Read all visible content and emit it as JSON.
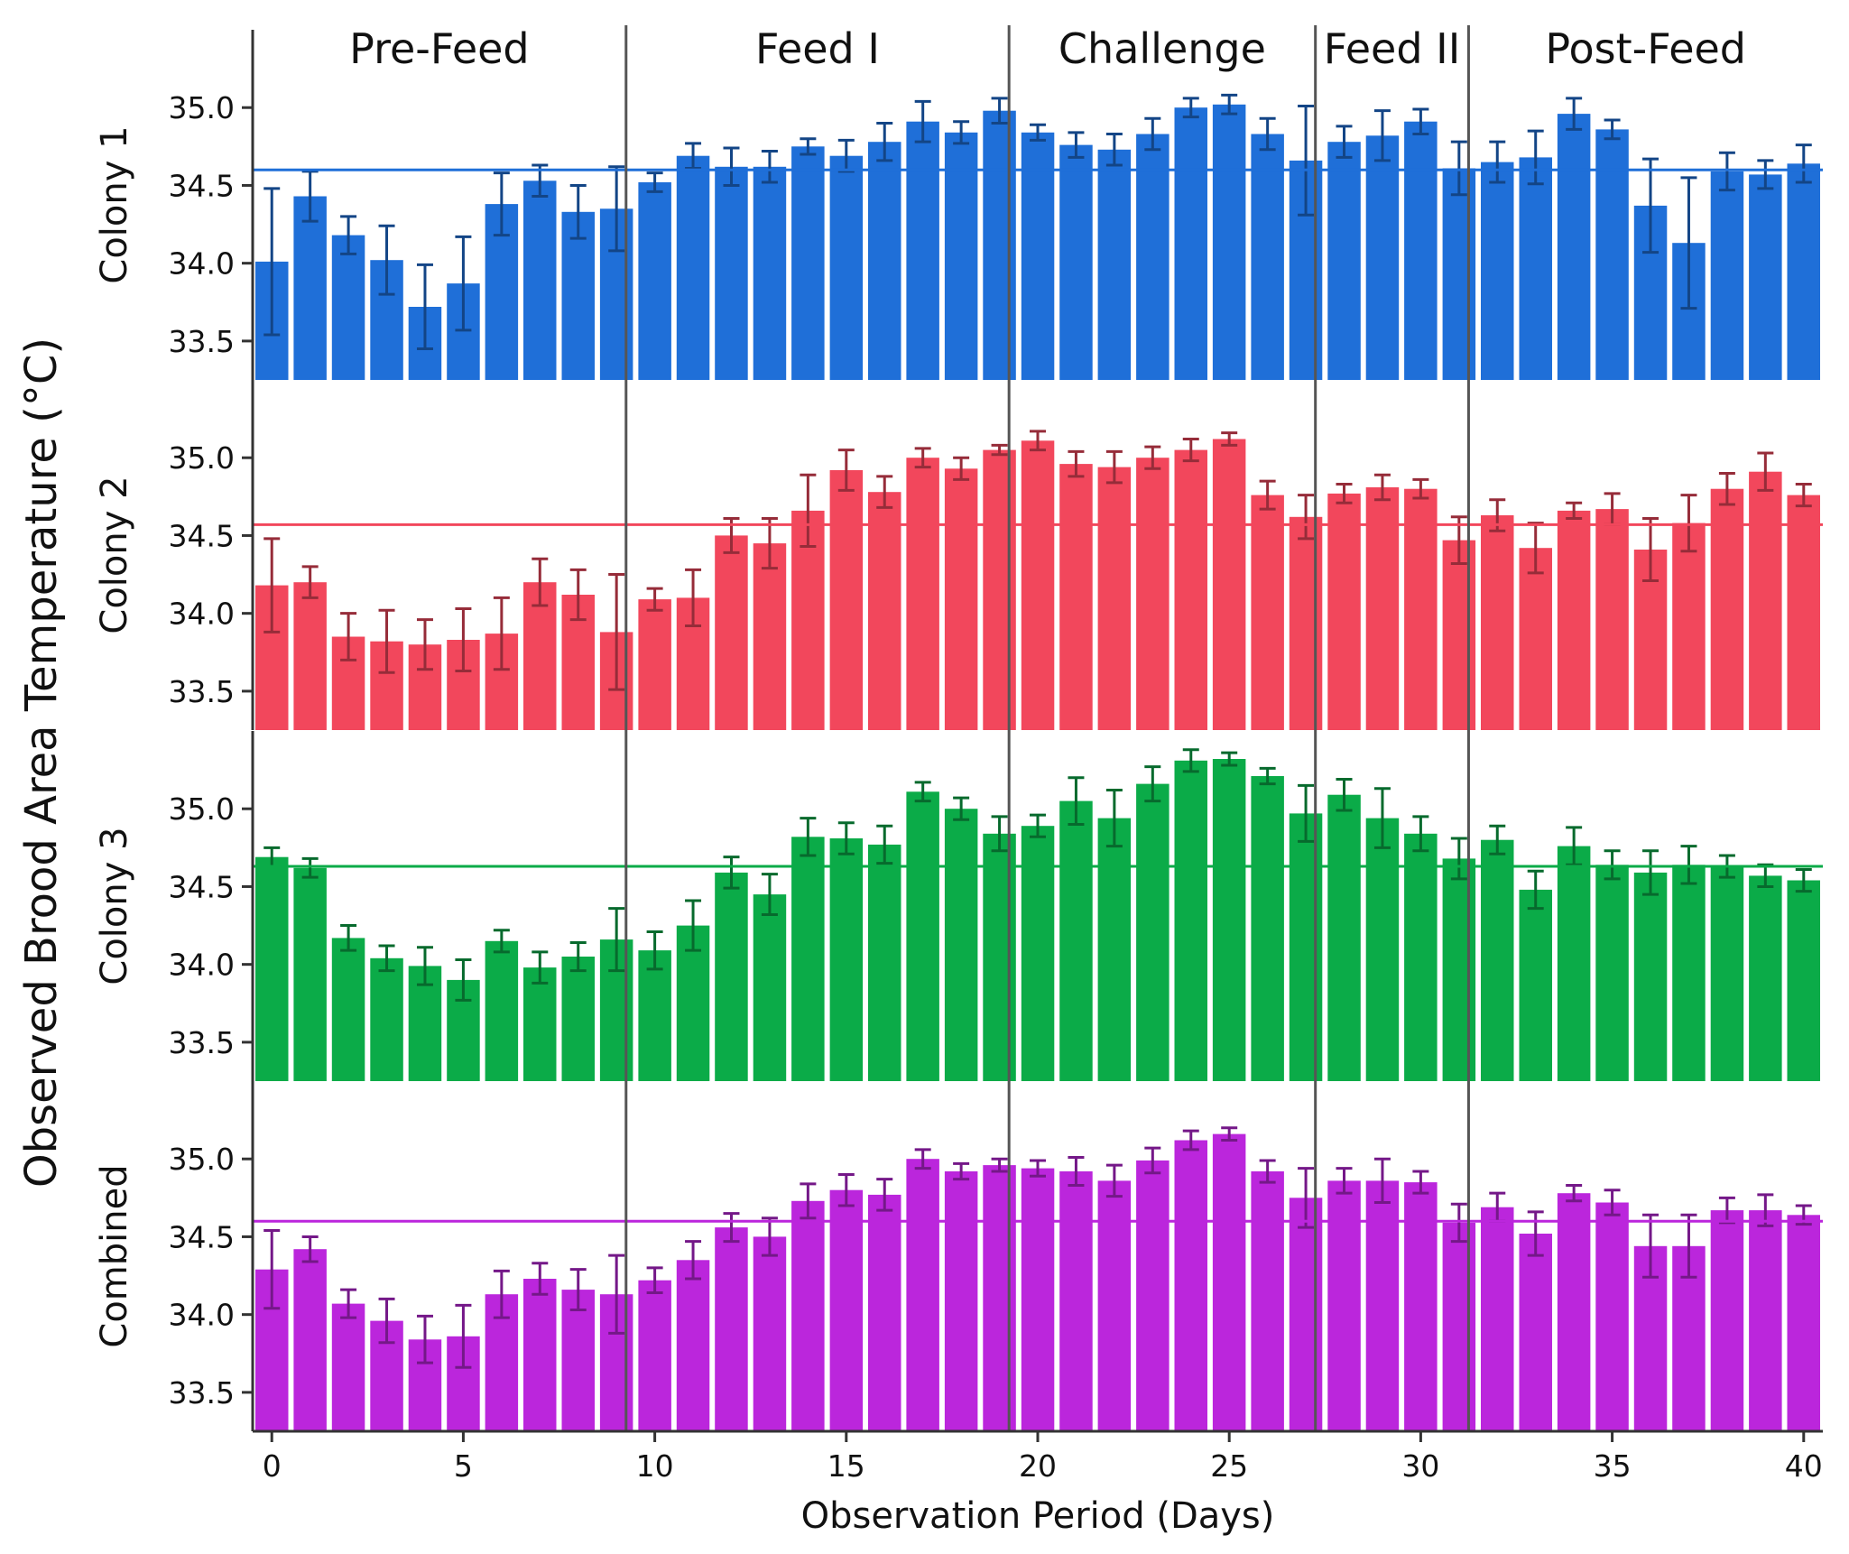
{
  "chart_data": {
    "type": "bar",
    "ylabel": "Observed Brood Area Temperature (°C)",
    "xlabel": "Observation Period (Days)",
    "x": [
      0,
      1,
      2,
      3,
      4,
      5,
      6,
      7,
      8,
      9,
      10,
      11,
      12,
      13,
      14,
      15,
      16,
      17,
      18,
      19,
      20,
      21,
      22,
      23,
      24,
      25,
      26,
      27,
      28,
      29,
      30,
      31,
      32,
      33,
      34,
      35,
      36,
      37,
      38,
      39,
      40
    ],
    "x_ticks": [
      0,
      5,
      10,
      15,
      20,
      25,
      30,
      35,
      40
    ],
    "y_ticks": [
      33.5,
      34.0,
      34.5,
      35.0
    ],
    "ylim": [
      33.25,
      35.5
    ],
    "xlim": [
      -0.5,
      40.5
    ],
    "phases": [
      {
        "label": "Pre-Feed",
        "start": -0.5,
        "end": 9.25
      },
      {
        "label": "Feed I",
        "start": 9.25,
        "end": 19.25
      },
      {
        "label": "Challenge",
        "start": 19.25,
        "end": 27.25
      },
      {
        "label": "Feed II",
        "start": 27.25,
        "end": 31.25
      },
      {
        "label": "Post-Feed",
        "start": 31.25,
        "end": 40.5
      }
    ],
    "panels": [
      {
        "name": "Colony 1",
        "color": "#1f6fd8",
        "reference_line": 34.6,
        "values": [
          34.01,
          34.43,
          34.18,
          34.02,
          33.72,
          33.87,
          34.38,
          34.53,
          34.33,
          34.35,
          34.52,
          34.69,
          34.62,
          34.62,
          34.75,
          34.69,
          34.78,
          34.91,
          34.84,
          34.98,
          34.84,
          34.76,
          34.73,
          34.83,
          35.0,
          35.02,
          34.83,
          34.66,
          34.78,
          34.82,
          34.91,
          34.61,
          34.65,
          34.68,
          34.96,
          34.86,
          34.37,
          34.13,
          34.59,
          34.57,
          34.64
        ],
        "errors": [
          0.47,
          0.16,
          0.12,
          0.22,
          0.27,
          0.3,
          0.2,
          0.1,
          0.17,
          0.27,
          0.06,
          0.08,
          0.12,
          0.1,
          0.05,
          0.1,
          0.12,
          0.13,
          0.07,
          0.08,
          0.05,
          0.08,
          0.1,
          0.1,
          0.06,
          0.06,
          0.1,
          0.35,
          0.1,
          0.16,
          0.08,
          0.17,
          0.13,
          0.17,
          0.1,
          0.06,
          0.3,
          0.42,
          0.12,
          0.09,
          0.12
        ]
      },
      {
        "name": "Colony 2",
        "color": "#f2475c",
        "reference_line": 34.57,
        "values": [
          34.18,
          34.2,
          33.85,
          33.82,
          33.8,
          33.83,
          33.87,
          34.2,
          34.12,
          33.88,
          34.09,
          34.1,
          34.5,
          34.45,
          34.66,
          34.92,
          34.78,
          35.0,
          34.93,
          35.05,
          35.11,
          34.96,
          34.94,
          35.0,
          35.05,
          35.12,
          34.76,
          34.62,
          34.77,
          34.81,
          34.8,
          34.47,
          34.63,
          34.42,
          34.66,
          34.67,
          34.41,
          34.58,
          34.8,
          34.91,
          34.76
        ],
        "errors": [
          0.3,
          0.1,
          0.15,
          0.2,
          0.16,
          0.2,
          0.23,
          0.15,
          0.16,
          0.37,
          0.07,
          0.18,
          0.11,
          0.16,
          0.23,
          0.13,
          0.1,
          0.06,
          0.07,
          0.03,
          0.06,
          0.08,
          0.1,
          0.07,
          0.07,
          0.04,
          0.09,
          0.14,
          0.06,
          0.08,
          0.06,
          0.15,
          0.1,
          0.16,
          0.05,
          0.1,
          0.2,
          0.18,
          0.1,
          0.12,
          0.07
        ]
      },
      {
        "name": "Colony 3",
        "color": "#0bab48",
        "reference_line": 34.63,
        "values": [
          34.69,
          34.62,
          34.17,
          34.04,
          33.99,
          33.9,
          34.15,
          33.98,
          34.05,
          34.16,
          34.09,
          34.25,
          34.59,
          34.45,
          34.82,
          34.81,
          34.77,
          35.11,
          35.0,
          34.84,
          34.89,
          35.05,
          34.94,
          35.16,
          35.31,
          35.32,
          35.21,
          34.97,
          35.09,
          34.94,
          34.84,
          34.68,
          34.8,
          34.48,
          34.76,
          34.64,
          34.59,
          34.64,
          34.63,
          34.57,
          34.54
        ],
        "errors": [
          0.06,
          0.06,
          0.08,
          0.08,
          0.12,
          0.13,
          0.07,
          0.1,
          0.09,
          0.2,
          0.12,
          0.16,
          0.1,
          0.13,
          0.12,
          0.1,
          0.12,
          0.06,
          0.07,
          0.11,
          0.07,
          0.15,
          0.18,
          0.11,
          0.07,
          0.04,
          0.05,
          0.18,
          0.1,
          0.19,
          0.11,
          0.13,
          0.09,
          0.12,
          0.12,
          0.09,
          0.14,
          0.12,
          0.07,
          0.07,
          0.07
        ]
      },
      {
        "name": "Combined",
        "color": "#bb26dc",
        "reference_line": 34.6,
        "values": [
          34.29,
          34.42,
          34.07,
          33.96,
          33.84,
          33.86,
          34.13,
          34.23,
          34.16,
          34.13,
          34.22,
          34.35,
          34.56,
          34.5,
          34.73,
          34.8,
          34.77,
          35.0,
          34.92,
          34.96,
          34.94,
          34.92,
          34.86,
          34.99,
          35.12,
          35.16,
          34.92,
          34.75,
          34.86,
          34.86,
          34.85,
          34.59,
          34.69,
          34.52,
          34.78,
          34.72,
          34.44,
          34.44,
          34.67,
          34.67,
          34.64
        ],
        "errors": [
          0.25,
          0.08,
          0.09,
          0.14,
          0.15,
          0.2,
          0.15,
          0.1,
          0.13,
          0.25,
          0.08,
          0.12,
          0.09,
          0.12,
          0.11,
          0.1,
          0.1,
          0.06,
          0.05,
          0.04,
          0.05,
          0.09,
          0.1,
          0.08,
          0.06,
          0.04,
          0.07,
          0.19,
          0.08,
          0.14,
          0.07,
          0.12,
          0.09,
          0.14,
          0.05,
          0.08,
          0.2,
          0.2,
          0.08,
          0.1,
          0.06
        ]
      }
    ]
  }
}
